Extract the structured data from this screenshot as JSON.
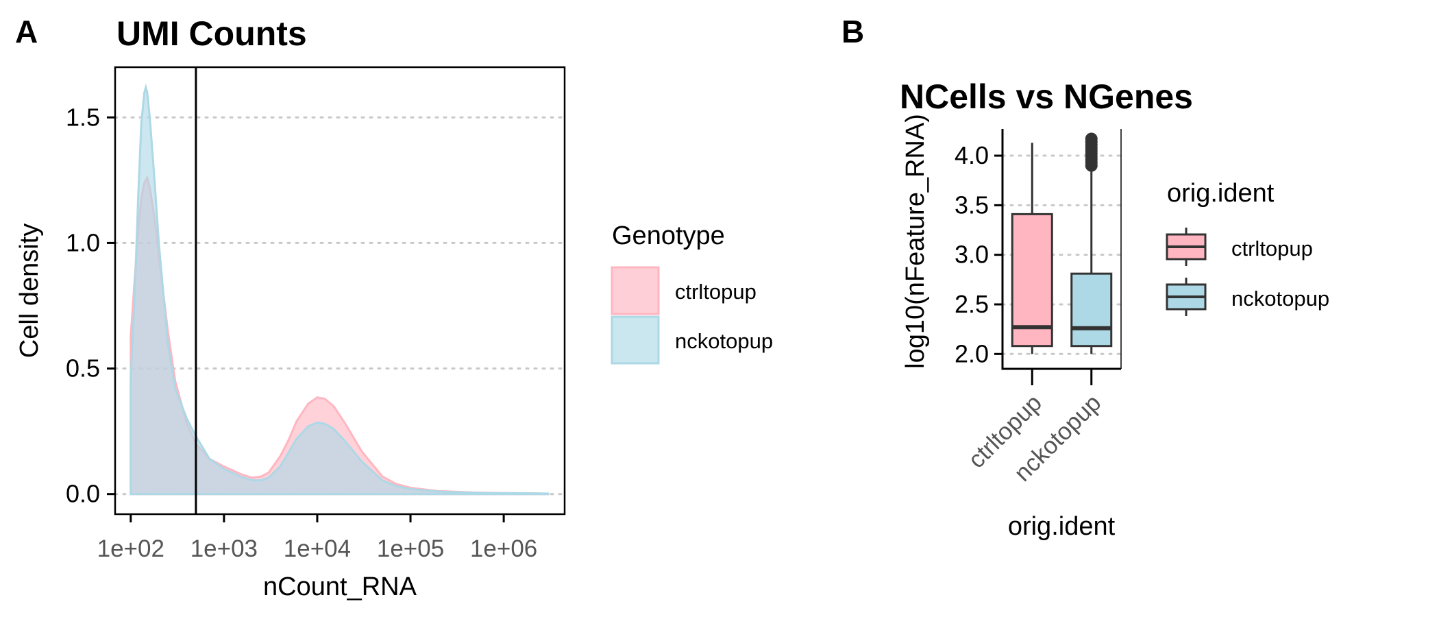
{
  "panels": {
    "a": {
      "letter": "A"
    },
    "b": {
      "letter": "B"
    }
  },
  "colors": {
    "ctrltopup": "#ffb6c1",
    "nckotopup": "#add8e6",
    "box_outline": "#333333",
    "outlier": "#333333"
  },
  "chart_data": [
    {
      "id": "umi-counts",
      "type": "area",
      "title": "UMI Counts",
      "xlabel": "nCount_RNA",
      "ylabel": "Cell density",
      "x_scale": "log10",
      "xlim": [
        68,
        4500000
      ],
      "ylim": [
        -0.08,
        1.7
      ],
      "x_ticks": [
        100,
        1000,
        10000,
        100000,
        1000000
      ],
      "x_tick_labels": [
        "1e+02",
        "1e+03",
        "1e+04",
        "1e+05",
        "1e+06"
      ],
      "y_ticks": [
        0,
        0.5,
        1,
        1.5
      ],
      "y_tick_labels": [
        "0.0",
        "0.5",
        "1.0",
        "1.5"
      ],
      "grid": "horizontal dotted",
      "threshold_line_x": 500,
      "legend": {
        "title": "Genotype",
        "position": "right",
        "entries": [
          "ctrltopup",
          "nckotopup"
        ]
      },
      "series": [
        {
          "name": "ctrltopup",
          "color": "#ffb6c1",
          "points": [
            [
              100,
              0.63
            ],
            [
              110,
              0.85
            ],
            [
              120,
              1.05
            ],
            [
              130,
              1.18
            ],
            [
              140,
              1.24
            ],
            [
              150,
              1.26
            ],
            [
              160,
              1.22
            ],
            [
              180,
              1.1
            ],
            [
              200,
              0.95
            ],
            [
              250,
              0.65
            ],
            [
              300,
              0.45
            ],
            [
              400,
              0.28
            ],
            [
              500,
              0.2
            ],
            [
              700,
              0.14
            ],
            [
              1000,
              0.11
            ],
            [
              1500,
              0.08
            ],
            [
              2000,
              0.065
            ],
            [
              2500,
              0.07
            ],
            [
              3000,
              0.085
            ],
            [
              4000,
              0.15
            ],
            [
              5000,
              0.22
            ],
            [
              6000,
              0.29
            ],
            [
              8000,
              0.36
            ],
            [
              10000,
              0.385
            ],
            [
              12000,
              0.38
            ],
            [
              15000,
              0.35
            ],
            [
              20000,
              0.28
            ],
            [
              30000,
              0.17
            ],
            [
              50000,
              0.07
            ],
            [
              70000,
              0.04
            ],
            [
              100000,
              0.025
            ],
            [
              200000,
              0.012
            ],
            [
              500000,
              0.006
            ],
            [
              1000000,
              0.004
            ],
            [
              3000000,
              0.002
            ]
          ]
        },
        {
          "name": "nckotopup",
          "color": "#add8e6",
          "points": [
            [
              100,
              0.46
            ],
            [
              110,
              0.78
            ],
            [
              120,
              1.18
            ],
            [
              130,
              1.48
            ],
            [
              140,
              1.6
            ],
            [
              145,
              1.62
            ],
            [
              150,
              1.6
            ],
            [
              160,
              1.5
            ],
            [
              180,
              1.25
            ],
            [
              200,
              1.0
            ],
            [
              250,
              0.6
            ],
            [
              300,
              0.42
            ],
            [
              400,
              0.3
            ],
            [
              500,
              0.23
            ],
            [
              700,
              0.14
            ],
            [
              1000,
              0.1
            ],
            [
              1500,
              0.07
            ],
            [
              2000,
              0.055
            ],
            [
              2500,
              0.055
            ],
            [
              3000,
              0.065
            ],
            [
              4000,
              0.11
            ],
            [
              5000,
              0.17
            ],
            [
              6000,
              0.22
            ],
            [
              8000,
              0.27
            ],
            [
              10000,
              0.285
            ],
            [
              12000,
              0.28
            ],
            [
              15000,
              0.26
            ],
            [
              20000,
              0.21
            ],
            [
              30000,
              0.13
            ],
            [
              50000,
              0.055
            ],
            [
              70000,
              0.032
            ],
            [
              100000,
              0.02
            ],
            [
              200000,
              0.01
            ],
            [
              500000,
              0.005
            ],
            [
              1000000,
              0.004
            ],
            [
              3000000,
              0.002
            ]
          ]
        }
      ]
    },
    {
      "id": "ncells-vs-ngenes",
      "type": "box",
      "title": "NCells vs NGenes",
      "xlabel": "orig.ident",
      "ylabel": "log10(nFeature_RNA)",
      "ylim": [
        1.85,
        4.27
      ],
      "y_ticks": [
        2.0,
        2.5,
        3.0,
        3.5,
        4.0
      ],
      "y_tick_labels": [
        "2.0",
        "2.5",
        "3.0",
        "3.5",
        "4.0"
      ],
      "categories": [
        "ctrltopup",
        "nckotopup"
      ],
      "grid": "horizontal dotted",
      "legend": {
        "title": "orig.ident",
        "position": "right",
        "entries": [
          "ctrltopup",
          "nckotopup"
        ]
      },
      "boxes": [
        {
          "name": "ctrltopup",
          "color": "#ffb6c1",
          "whisker_low": 2.0,
          "q1": 2.08,
          "median": 2.27,
          "q3": 3.41,
          "whisker_high": 4.13,
          "outliers": []
        },
        {
          "name": "nckotopup",
          "color": "#add8e6",
          "whisker_low": 2.0,
          "q1": 2.08,
          "median": 2.26,
          "q3": 2.81,
          "whisker_high": 3.88,
          "outliers": [
            3.9,
            3.93,
            3.96,
            3.99,
            4.02,
            4.05,
            4.08,
            4.11,
            4.14,
            4.17
          ]
        }
      ]
    }
  ]
}
